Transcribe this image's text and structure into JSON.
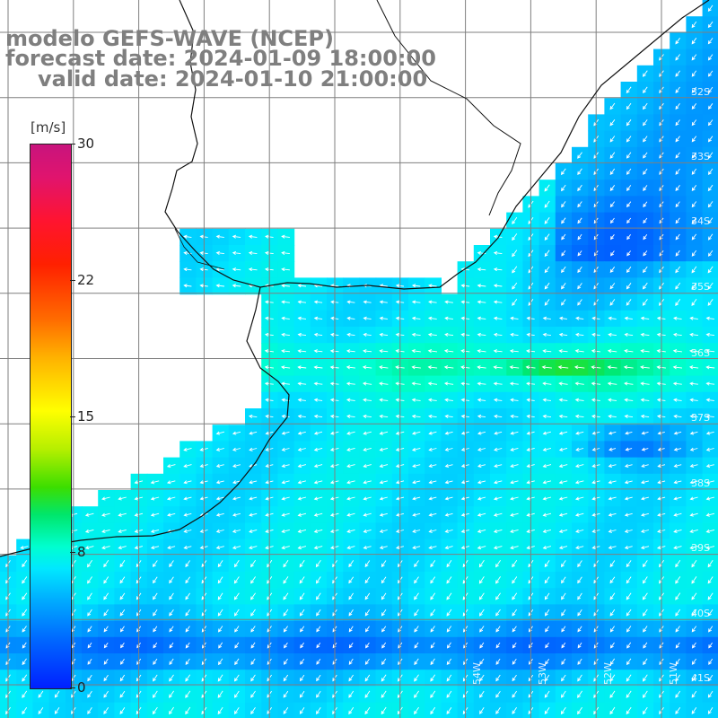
{
  "title": {
    "line1": "modelo GEFS-WAVE (NCEP)",
    "line2": "forecast date: 2024-01-09 18:00:00",
    "line3": "valid date: 2024-01-10 21:00:00"
  },
  "colorbar": {
    "unit": "[m/s]",
    "min": 0,
    "max": 30,
    "ticks": [
      "30",
      "22",
      "15",
      "8",
      "0"
    ]
  },
  "lat_labels": [
    "32S",
    "33S",
    "34S",
    "35S",
    "36S",
    "37S",
    "38S",
    "39S",
    "40S",
    "41S"
  ],
  "lon_labels": [
    "54W",
    "53W",
    "52W",
    "51W"
  ],
  "colors": {
    "grid": "#7f7f7f",
    "coast": "#111111",
    "arrow": "#ffffff",
    "title": "#7f7f7f"
  },
  "wind_field": {
    "description_units": "m/s",
    "dominant_direction": "from east / north-east toward west / south-west",
    "speed_range": [
      0,
      12
    ]
  }
}
